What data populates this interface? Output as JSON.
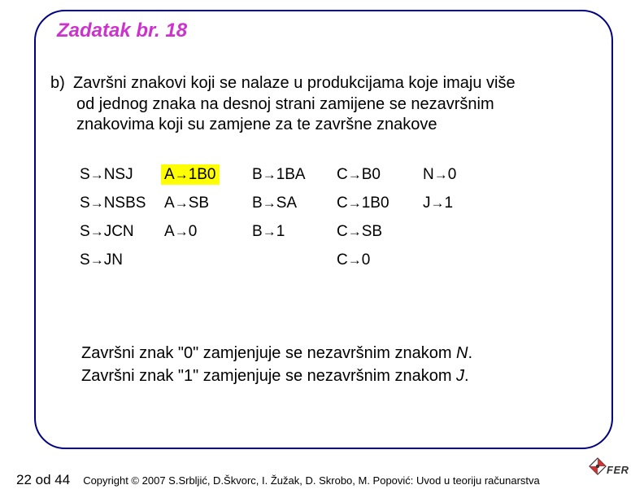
{
  "title": "Zadatak br. 18",
  "body": {
    "marker": "b)",
    "line1": "Završni znakovi koji se nalaze u produkcijama koje imaju više",
    "line2": "od jednog znaka na desnoj strani zamijene se nezavršnim",
    "line3": "znakovima koji su zamjene za te završne znakove"
  },
  "grid": {
    "rows": [
      [
        {
          "lhs": "S",
          "rhs": "NSJ",
          "hl": false
        },
        {
          "lhs": "A",
          "rhs": "1B0",
          "hl": true
        },
        {
          "lhs": "B",
          "rhs": "1BA",
          "hl": false
        },
        {
          "lhs": "C",
          "rhs": "B0",
          "hl": false
        },
        {
          "lhs": "N",
          "rhs": "0",
          "hl": false
        }
      ],
      [
        {
          "lhs": "S",
          "rhs": "NSBS",
          "hl": false
        },
        {
          "lhs": "A",
          "rhs": "SB",
          "hl": false
        },
        {
          "lhs": "B",
          "rhs": "SA",
          "hl": false
        },
        {
          "lhs": "C",
          "rhs": "1B0",
          "hl": false
        },
        {
          "lhs": "J",
          "rhs": "1",
          "hl": false
        }
      ],
      [
        {
          "lhs": "S",
          "rhs": "JCN",
          "hl": false
        },
        {
          "lhs": "A",
          "rhs": "0",
          "hl": false
        },
        {
          "lhs": "B",
          "rhs": "1",
          "hl": false
        },
        {
          "lhs": "C",
          "rhs": "SB",
          "hl": false
        },
        null
      ],
      [
        {
          "lhs": "S",
          "rhs": "JN",
          "hl": false
        },
        null,
        null,
        {
          "lhs": "C",
          "rhs": "0",
          "hl": false
        },
        null
      ]
    ]
  },
  "notes": {
    "n1_pre": "Završni znak \"0\" zamjenjuje se nezavršnim znakom ",
    "n1_sym": "N",
    "n2_pre": "Završni znak \"1\" zamjenjuje se nezavršnim znakom ",
    "n2_sym": "J"
  },
  "footer": {
    "page": "22 od 44",
    "copyright": "Copyright © 2007 S.Srbljić, D.Škvorc, I. Žužak, D. Skrobo, M. Popović: Uvod u teoriju računarstva",
    "logo_text": "FER"
  },
  "colors": {
    "frame": "#000080",
    "title": "#cc33cc",
    "highlight": "#ffff00",
    "text": "#000000",
    "logo_red": "#cc3333",
    "logo_dark": "#333333"
  }
}
